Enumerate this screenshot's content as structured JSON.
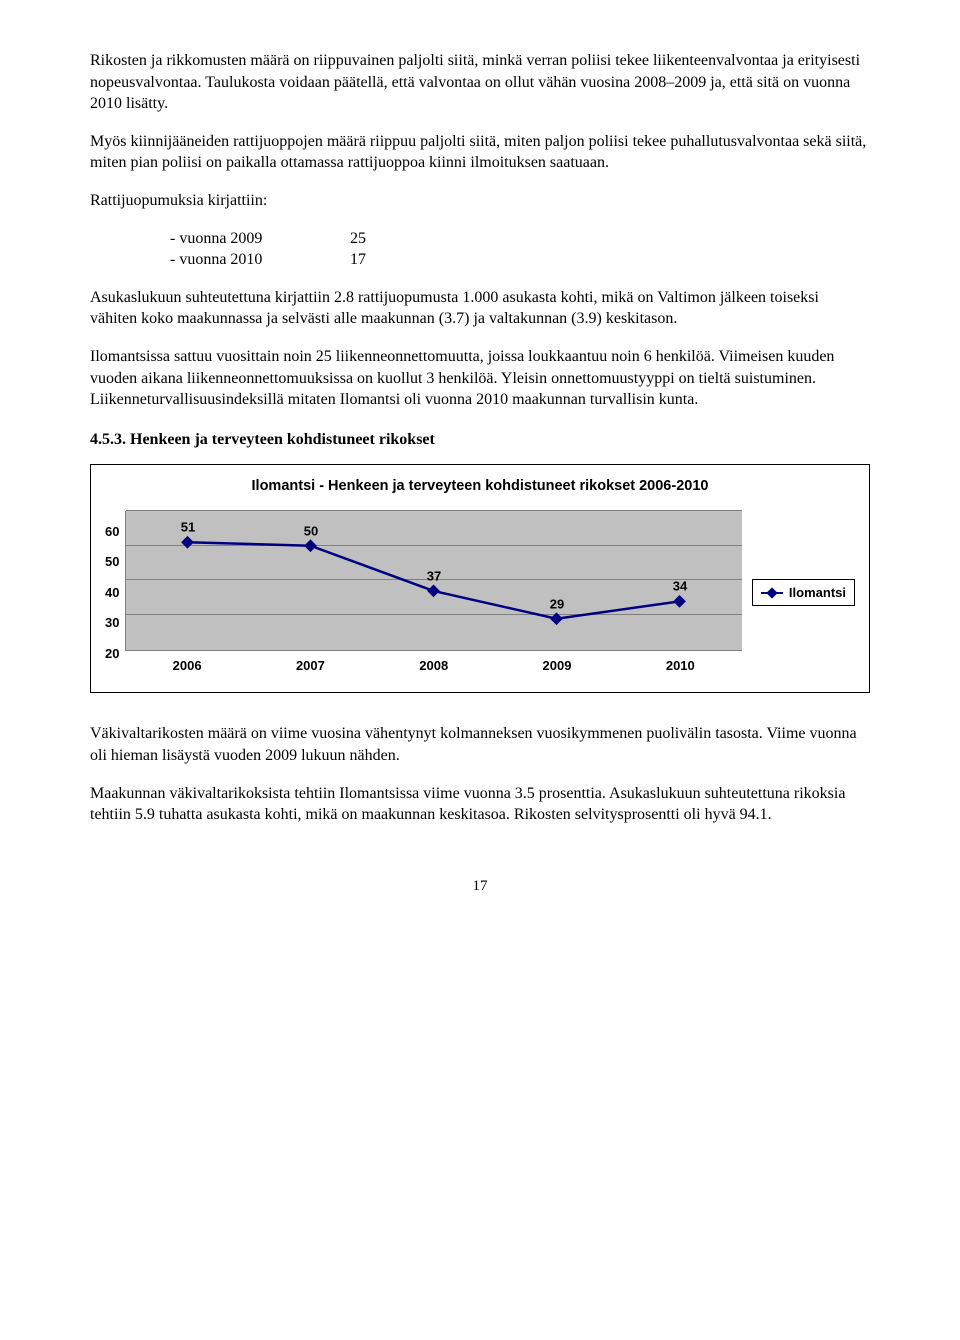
{
  "para1": "Rikosten ja rikkomusten määrä on riippuvainen paljolti siitä, minkä verran poliisi tekee liikenteenvalvontaa ja erityisesti nopeusvalvontaa. Taulukosta voidaan päätellä, että valvontaa on ollut vähän vuosina 2008–2009 ja, että sitä on vuonna 2010 lisätty.",
  "para2": "Myös kiinnijääneiden rattijuoppojen määrä riippuu paljolti siitä, miten paljon poliisi tekee puhallutusvalvontaa sekä siitä, miten pian poliisi on paikalla ottamassa rattijuoppoa kiinni ilmoituksen saatuaan.",
  "para3_intro": "Rattijuopumuksia kirjattiin:",
  "ratti": {
    "rows": [
      {
        "label": "- vuonna 2009",
        "value": "25"
      },
      {
        "label": "- vuonna 2010",
        "value": "17"
      }
    ]
  },
  "para4": "Asukaslukuun suhteutettuna kirjattiin 2.8 rattijuopumusta 1.000 asukasta kohti, mikä on Valtimon jälkeen toiseksi vähiten koko maakunnassa ja selvästi alle maakunnan (3.7) ja valtakunnan (3.9) keskitason.",
  "para5": "Ilomantsissa sattuu vuosittain noin 25 liikenneonnettomuutta, joissa loukkaantuu noin 6 henkilöä. Viimeisen kuuden vuoden aikana liikenneonnettomuuksissa on kuollut 3 henkilöä. Yleisin onnettomuustyyppi on tieltä suistuminen. Liikenneturvallisuusindeksillä mitaten Ilomantsi oli vuonna 2010 maakunnan turvallisin kunta.",
  "heading": "4.5.3.   Henkeen ja terveyteen kohdistuneet rikokset",
  "chart": {
    "type": "line",
    "title": "Ilomantsi - Henkeen ja terveyteen kohdistuneet rikokset 2006-2010",
    "categories": [
      "2006",
      "2007",
      "2008",
      "2009",
      "2010"
    ],
    "values": [
      51,
      50,
      37,
      29,
      34
    ],
    "ylim": [
      20,
      60
    ],
    "ytick_step": 10,
    "yticks": [
      "60",
      "50",
      "40",
      "30",
      "20"
    ],
    "line_color": "#000080",
    "marker": "diamond",
    "marker_size": 9,
    "line_width": 2.5,
    "plot_bg": "#c0c0c0",
    "grid_color": "#808080",
    "frame_border": "#000000",
    "legend_label": "Ilomantsi",
    "title_fontsize": 14.5,
    "axis_fontsize": 13,
    "font_family": "Arial"
  },
  "para6": "Väkivaltarikosten määrä on viime vuosina vähentynyt kolmanneksen vuosikymmenen puolivälin tasosta. Viime vuonna oli hieman lisäystä vuoden 2009 lukuun nähden.",
  "para7": "Maakunnan väkivaltarikoksista tehtiin Ilomantsissa viime vuonna 3.5 prosenttia. Asukaslukuun suhteutettuna rikoksia tehtiin 5.9 tuhatta asukasta kohti, mikä on maakunnan keskitasoa. Rikosten selvitysprosentti oli hyvä 94.1.",
  "page_number": "17"
}
